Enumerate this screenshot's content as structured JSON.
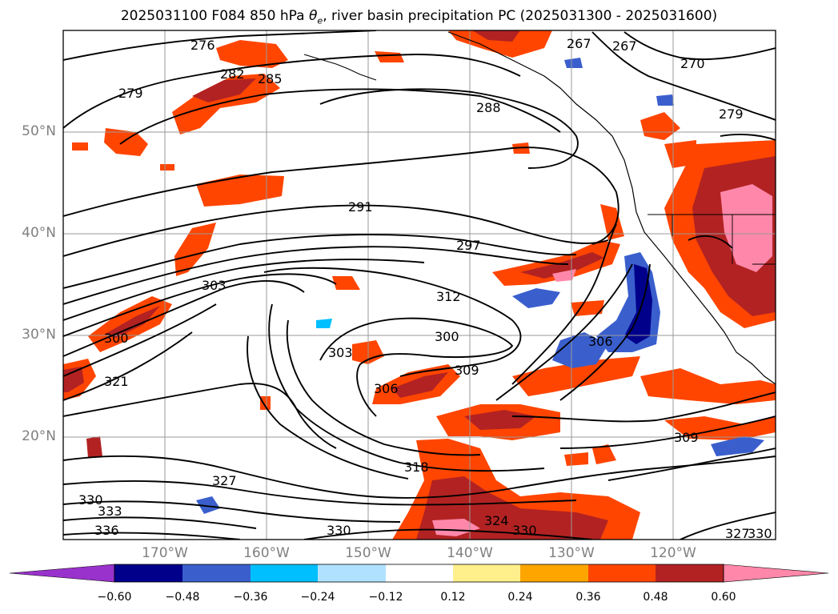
{
  "title": {
    "prefix": "2025031100 F084 850 hPa ",
    "theta": "θ",
    "theta_sub": "e",
    "suffix": ", river basin precipitation PC (2025031300 - 2025031600)"
  },
  "latitude_labels": [
    "50°N",
    "40°N",
    "30°N",
    "20°N"
  ],
  "longitude_labels": [
    "170°W",
    "160°W",
    "150°W",
    "140°W",
    "130°W",
    "120°W"
  ],
  "contour_labels": [
    "276",
    "267",
    "267",
    "270",
    "279",
    "282",
    "285",
    "288",
    "279",
    "291",
    "297",
    "303",
    "312",
    "300",
    "300",
    "303",
    "309",
    "306",
    "321",
    "306",
    "309",
    "318",
    "327",
    "330",
    "333",
    "336",
    "330",
    "324",
    "330",
    "327",
    "330"
  ],
  "colorbar": {
    "ticks": [
      "−0.60",
      "−0.48",
      "−0.36",
      "−0.24",
      "−0.12",
      "0.12",
      "0.24",
      "0.36",
      "0.48",
      "0.60"
    ],
    "colors": [
      "#9932cc",
      "#00008b",
      "#3a5fcd",
      "#00bfff",
      "#b0e2ff",
      "#ffffff",
      "#fff08c",
      "#ffa500",
      "#ff4500",
      "#b22222",
      "#ff88aa"
    ]
  }
}
